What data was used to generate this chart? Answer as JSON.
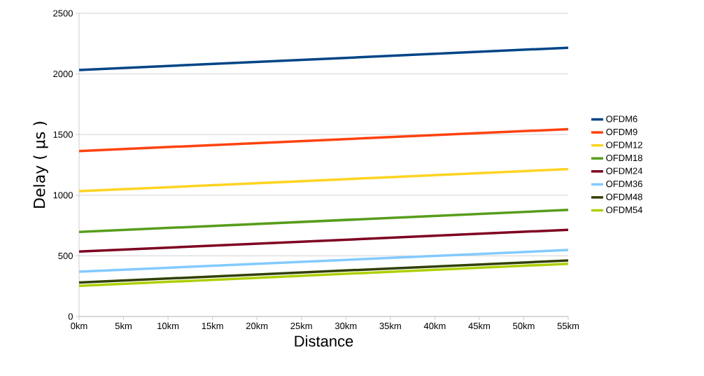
{
  "chart_data": {
    "type": "line",
    "xlabel": "Distance",
    "ylabel": "Delay ( μs )",
    "x": [
      0,
      55
    ],
    "xlim": [
      0,
      55
    ],
    "xticks": [
      {
        "value": 0,
        "label": "0km"
      },
      {
        "value": 5,
        "label": "5km"
      },
      {
        "value": 10,
        "label": "10km"
      },
      {
        "value": 15,
        "label": "15km"
      },
      {
        "value": 20,
        "label": "20km"
      },
      {
        "value": 25,
        "label": "25km"
      },
      {
        "value": 30,
        "label": "30km"
      },
      {
        "value": 35,
        "label": "35km"
      },
      {
        "value": 40,
        "label": "40km"
      },
      {
        "value": 45,
        "label": "45km"
      },
      {
        "value": 50,
        "label": "50km"
      },
      {
        "value": 55,
        "label": "55km"
      }
    ],
    "ylim": [
      0,
      2500
    ],
    "yticks": [
      0,
      500,
      1000,
      1500,
      2000,
      2500
    ],
    "grid": "y",
    "legend": "right",
    "marker": "none",
    "line_style": "solid",
    "series": [
      {
        "name": "OFDM6",
        "color": "#004586",
        "values": [
          2032,
          2216
        ]
      },
      {
        "name": "OFDM9",
        "color": "#ff420e",
        "values": [
          1364,
          1545
        ]
      },
      {
        "name": "OFDM12",
        "color": "#ffd320",
        "values": [
          1033,
          1215
        ]
      },
      {
        "name": "OFDM18",
        "color": "#579d1c",
        "values": [
          697,
          879
        ]
      },
      {
        "name": "OFDM24",
        "color": "#7e0021",
        "values": [
          535,
          715
        ]
      },
      {
        "name": "OFDM36",
        "color": "#83caff",
        "values": [
          369,
          548
        ]
      },
      {
        "name": "OFDM48",
        "color": "#314004",
        "values": [
          280,
          462
        ]
      },
      {
        "name": "OFDM54",
        "color": "#aecf00",
        "values": [
          252,
          435
        ]
      }
    ]
  }
}
